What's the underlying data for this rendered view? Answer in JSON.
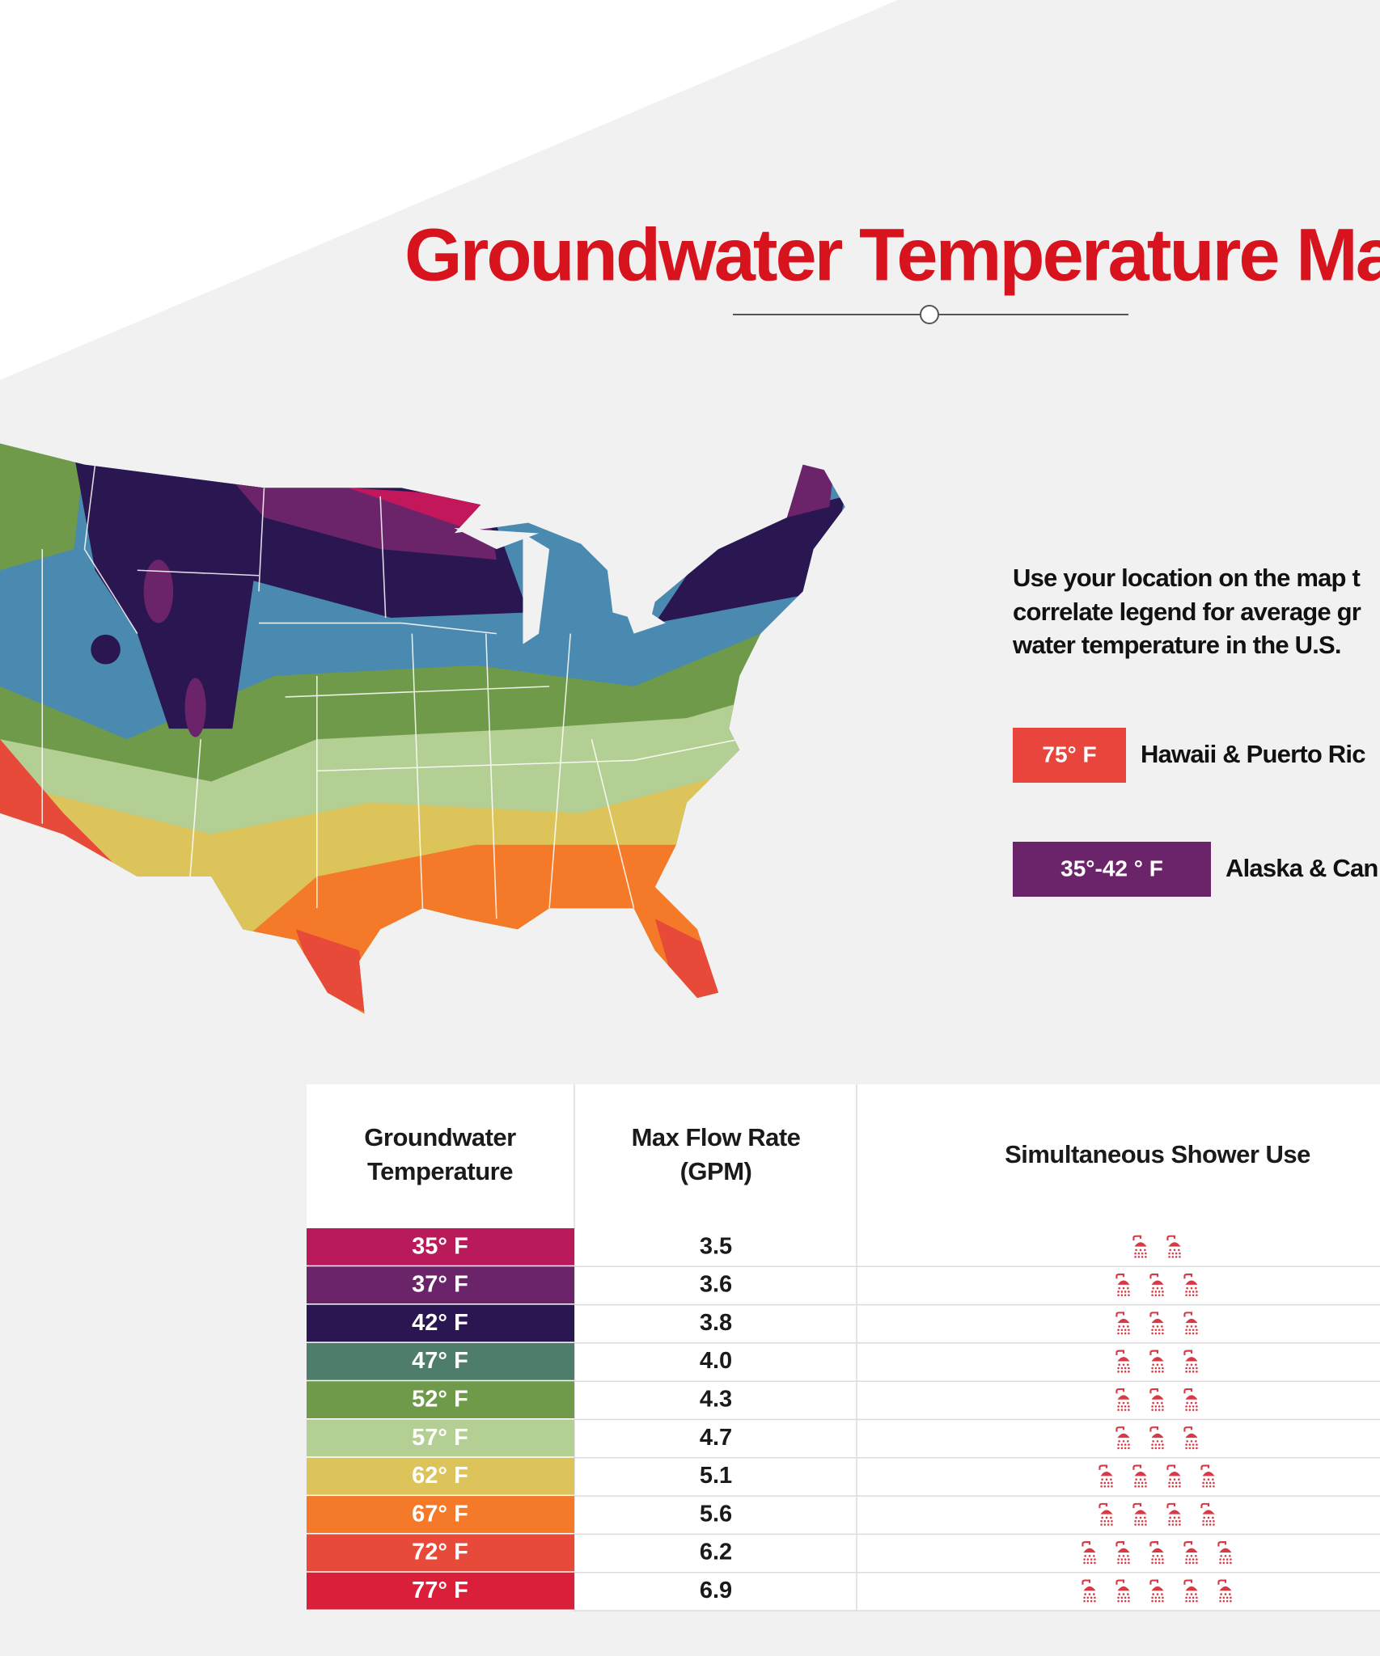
{
  "header": {
    "title": "Groundwater Temperature Ma"
  },
  "description": [
    "Use your location on the map t",
    "correlate legend for average gr",
    "water temperature  in the U.S."
  ],
  "legend": [
    {
      "label": "75° F",
      "text": "Hawaii & Puerto Ric",
      "color": "#e8453c"
    },
    {
      "label": "35°-42 ° F",
      "text": "Alaska & Can",
      "color": "#6b2469"
    }
  ],
  "table": {
    "headers": [
      [
        "Groundwater",
        "Temperature"
      ],
      [
        "Max Flow Rate",
        "(GPM)"
      ],
      [
        "Simultaneous Shower Use"
      ]
    ],
    "rows": [
      {
        "temp": "35° F",
        "flow": "3.5",
        "showers": 2,
        "color": "#b81a5a"
      },
      {
        "temp": "37° F",
        "flow": "3.6",
        "showers": 3,
        "color": "#6b2469"
      },
      {
        "temp": "42° F",
        "flow": "3.8",
        "showers": 3,
        "color": "#2a1650"
      },
      {
        "temp": "47° F",
        "flow": "4.0",
        "showers": 3,
        "color": "#4f7d6b"
      },
      {
        "temp": "52° F",
        "flow": "4.3",
        "showers": 3,
        "color": "#6e9a4a"
      },
      {
        "temp": "57° F",
        "flow": "4.7",
        "showers": 3,
        "color": "#b3cf93"
      },
      {
        "temp": "62° F",
        "flow": "5.1",
        "showers": 4,
        "color": "#dcc45a"
      },
      {
        "temp": "67° F",
        "flow": "5.6",
        "showers": 4,
        "color": "#f47a2a"
      },
      {
        "temp": "72° F",
        "flow": "6.2",
        "showers": 5,
        "color": "#e84a3a"
      },
      {
        "temp": "77° F",
        "flow": "6.9",
        "showers": 5,
        "color": "#d91f3a"
      }
    ]
  }
}
